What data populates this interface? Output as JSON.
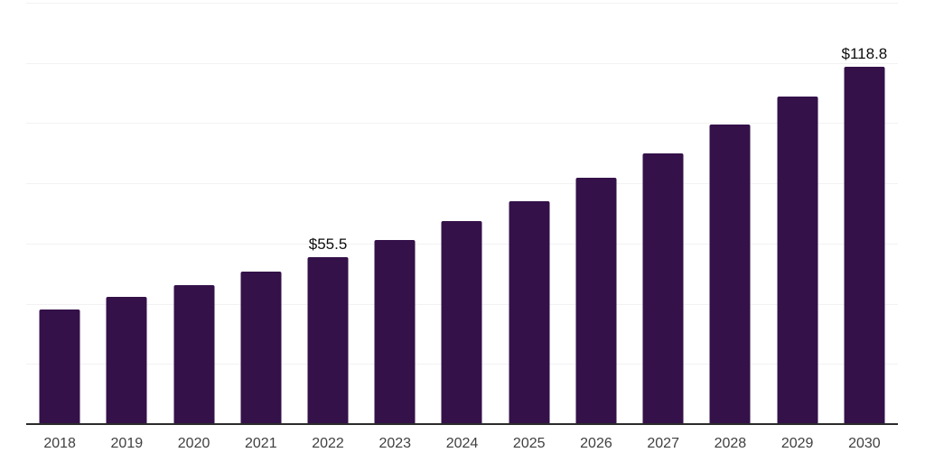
{
  "chart_data": {
    "type": "bar",
    "title": "",
    "xlabel": "",
    "ylabel": "",
    "categories": [
      "2018",
      "2019",
      "2020",
      "2021",
      "2022",
      "2023",
      "2024",
      "2025",
      "2026",
      "2027",
      "2028",
      "2029",
      "2030"
    ],
    "values": [
      38.1,
      42.2,
      46.2,
      50.7,
      55.5,
      61.3,
      67.5,
      74.2,
      81.7,
      90.0,
      99.5,
      108.9,
      118.8
    ],
    "data_labels": [
      {
        "category": "2022",
        "text": "$55.5"
      },
      {
        "category": "2030",
        "text": "$118.8"
      }
    ],
    "ylim": [
      0,
      140
    ],
    "gridline_step": 20,
    "grid": "horizontal-only",
    "legend_position": "none",
    "y_axis_tick_labels_visible": false,
    "bar_color": "#341149",
    "gridline_color": "#f2f2f2",
    "baseline_color": "#2b2b2b",
    "axis_label_color": "#404040",
    "data_label_color": "#0d0d0d",
    "background_color": "#ffffff"
  }
}
